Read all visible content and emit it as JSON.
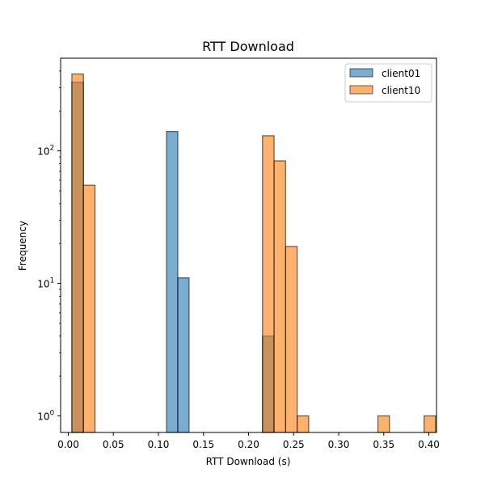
{
  "chart_data": {
    "type": "bar",
    "title": "RTT Download",
    "xlabel": "RTT Download (s)",
    "ylabel": "Frequency",
    "yscale": "log",
    "xlim": [
      -0.0085,
      0.4085
    ],
    "ylim": [
      0.75,
      500
    ],
    "x_ticks": [
      0.0,
      0.05,
      0.1,
      0.15,
      0.2,
      0.25,
      0.3,
      0.35,
      0.4
    ],
    "x_tick_labels": [
      "0.00",
      "0.05",
      "0.10",
      "0.15",
      "0.20",
      "0.25",
      "0.30",
      "0.35",
      "0.40"
    ],
    "y_major_ticks": [
      1,
      10,
      100
    ],
    "y_tick_labels": [
      "10",
      "10",
      "10"
    ],
    "y_tick_exponents": [
      "0",
      "1",
      "2"
    ],
    "y_minor_ticks": [
      2,
      3,
      4,
      5,
      6,
      7,
      8,
      9,
      20,
      30,
      40,
      50,
      60,
      70,
      80,
      90,
      200,
      300,
      400
    ],
    "grid": false,
    "legend_position": "top-right",
    "series": [
      {
        "name": "client01",
        "color": "#1f77b4",
        "bins": [
          {
            "x0": 0.004,
            "x1": 0.0168,
            "count": 330
          },
          {
            "x0": 0.109,
            "x1": 0.1215,
            "count": 140
          },
          {
            "x0": 0.1215,
            "x1": 0.134,
            "count": 11
          },
          {
            "x0": 0.2155,
            "x1": 0.228,
            "count": 4
          }
        ]
      },
      {
        "name": "client10",
        "color": "#ff7f0e",
        "bins": [
          {
            "x0": 0.004,
            "x1": 0.0168,
            "count": 380
          },
          {
            "x0": 0.0168,
            "x1": 0.0296,
            "count": 55
          },
          {
            "x0": 0.2155,
            "x1": 0.2283,
            "count": 130
          },
          {
            "x0": 0.2283,
            "x1": 0.2411,
            "count": 84
          },
          {
            "x0": 0.2411,
            "x1": 0.2539,
            "count": 19
          },
          {
            "x0": 0.2539,
            "x1": 0.2667,
            "count": 1
          },
          {
            "x0": 0.3435,
            "x1": 0.3563,
            "count": 1
          },
          {
            "x0": 0.3947,
            "x1": 0.4075,
            "count": 1
          }
        ]
      }
    ]
  }
}
